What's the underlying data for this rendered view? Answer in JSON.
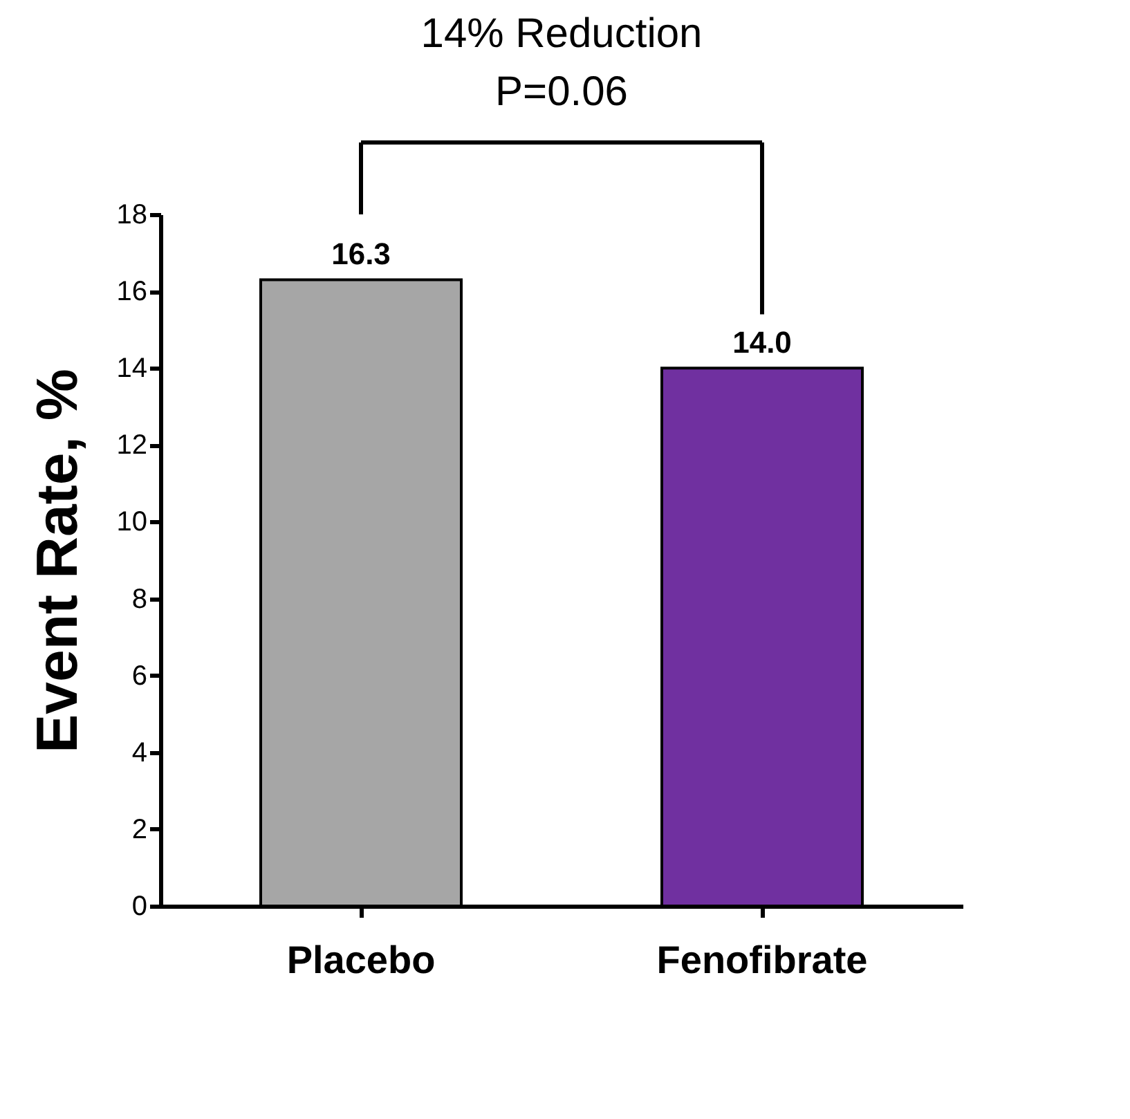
{
  "chart_data": {
    "type": "bar",
    "ylabel": "Event Rate, %",
    "categories": [
      "Placebo",
      "Fenofibrate"
    ],
    "values": [
      16.3,
      14.0
    ],
    "value_labels": [
      "16.3",
      "14.0"
    ],
    "colors": [
      "#a6a6a6",
      "#7030a0"
    ],
    "ylim": [
      0,
      18
    ],
    "yticks": [
      0,
      2,
      4,
      6,
      8,
      10,
      12,
      14,
      16,
      18
    ],
    "grid": false,
    "annotations": [
      "14% Reduction",
      "P=0.06"
    ]
  }
}
